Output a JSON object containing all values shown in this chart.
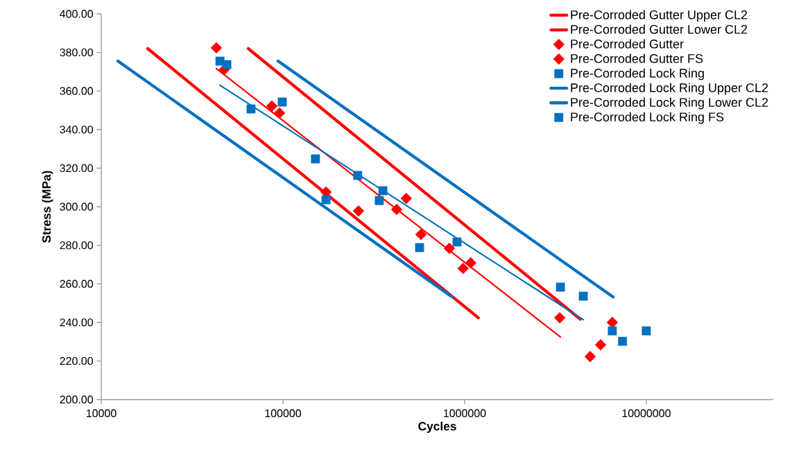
{
  "chart_data": {
    "type": "scatter",
    "xlabel": "Cycles",
    "ylabel": "Stress (MPa)",
    "log": "x",
    "xlim": [
      10000,
      50000000
    ],
    "ylim": [
      200,
      400
    ],
    "xticks": [
      10000,
      100000,
      1000000,
      10000000
    ],
    "yticks": [
      {
        "value": 200,
        "label": "200.00"
      },
      {
        "value": 220,
        "label": "220.00"
      },
      {
        "value": 240,
        "label": "240.00"
      },
      {
        "value": 260,
        "label": "260.00"
      },
      {
        "value": 280,
        "label": "280.00"
      },
      {
        "value": 300,
        "label": "300.00"
      },
      {
        "value": 320,
        "label": "320.00"
      },
      {
        "value": 340,
        "label": "340.00"
      },
      {
        "value": 360,
        "label": "360.00"
      },
      {
        "value": 380,
        "label": "380.00"
      },
      {
        "value": 400,
        "label": "400.00"
      }
    ],
    "legend": "top right",
    "series": [
      {
        "name": "Pre-Corroded Gutter Upper CL2",
        "type": "line",
        "marker": "none",
        "color": "#ff0000",
        "x": [
          64400,
          4330000
        ],
        "values": [
          382,
          241.7
        ]
      },
      {
        "name": "Pre-Corroded Gutter Lower CL2",
        "type": "line",
        "marker": "none",
        "color": "#ff0000",
        "x": [
          18000,
          1190000
        ],
        "values": [
          382,
          242.4
        ]
      },
      {
        "name": "Pre-Corroded Gutter",
        "marker": "diamond",
        "color": "#ff0000",
        "x": [
          43000,
          47400,
          86900,
          95700,
          172600,
          260600,
          422600,
          477000,
          575000,
          824000,
          981000,
          1080000,
          3340000
        ],
        "values": [
          382.4,
          371,
          352.2,
          348.6,
          307.6,
          297.8,
          298.6,
          304.3,
          285.6,
          278.4,
          268,
          270.9,
          242.4
        ]
      },
      {
        "name": "Pre-Corroded Gutter FS",
        "marker": "diamond",
        "color": "#ff0000",
        "x": [
          4910000,
          5600000,
          6500000
        ],
        "values": [
          222.3,
          228.4,
          240
        ]
      },
      {
        "name": "Pre-Corroded Lock Ring",
        "marker": "square",
        "color": "#0070c0",
        "x": [
          45000,
          49100,
          66700,
          99100,
          151000,
          172600,
          258000,
          339000,
          355000,
          565000,
          908000,
          3370000,
          4500000
        ],
        "values": [
          375.5,
          373.7,
          350.7,
          354.3,
          324.8,
          303.6,
          316.2,
          303.2,
          308.3,
          278.8,
          281.7,
          258.3,
          253.6
        ]
      },
      {
        "name": "Pre-Corroded Lock Ring Upper CL2",
        "type": "line",
        "marker": "none",
        "color": "#0070c0",
        "x": [
          94000,
          6560000
        ],
        "values": [
          375.5,
          253.2
        ]
      },
      {
        "name": "Pre-Corroded Lock Ring Lower CL2",
        "type": "line",
        "marker": "none",
        "color": "#0070c0",
        "x": [
          12350,
          853000
        ],
        "values": [
          375.5,
          253.2
        ]
      },
      {
        "name": "Pre-Corroded Lock Ring FS",
        "marker": "square",
        "color": "#0070c0",
        "x": [
          6500000,
          7400000,
          10000000
        ],
        "values": [
          235.6,
          230.2,
          235.6
        ]
      },
      {
        "type": "line",
        "marker": "none",
        "color": "#ff0000",
        "x": [
          43000,
          3370000
        ],
        "values": [
          371.6,
          232.4
        ]
      },
      {
        "type": "line",
        "marker": "none",
        "color": "#0070c0",
        "x": [
          45000,
          4500000
        ],
        "values": [
          363,
          241.4
        ]
      }
    ]
  }
}
